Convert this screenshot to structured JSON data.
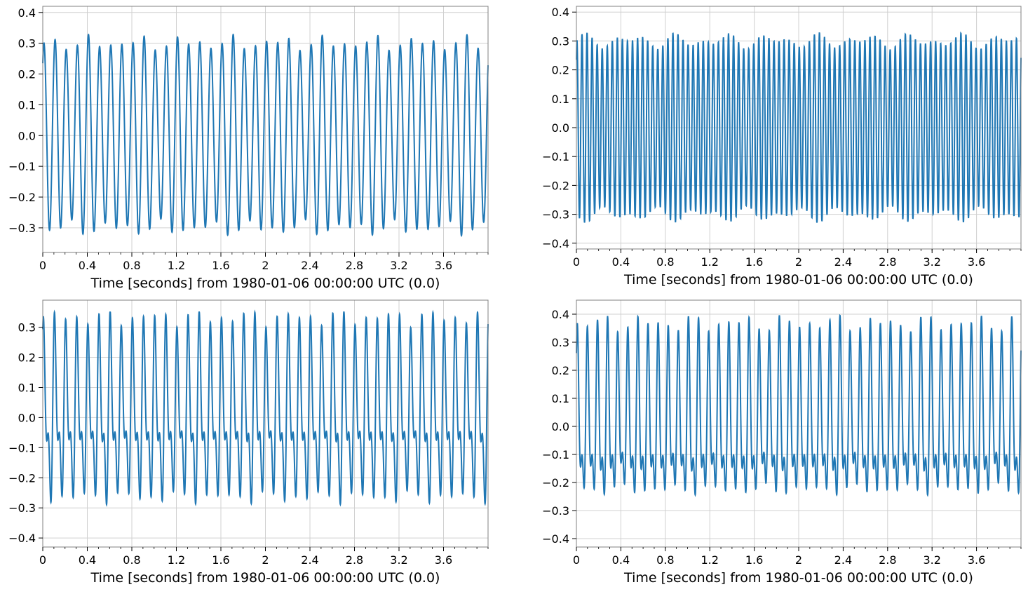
{
  "chart_data": [
    {
      "type": "line",
      "xlabel": "Time [seconds] from 1980-01-06 00:00:00 UTC (0.0)",
      "ylabel": "",
      "xlim": [
        0,
        4
      ],
      "ylim": [
        -0.38,
        0.42
      ],
      "xticks": [
        0,
        0.4,
        0.8,
        1.2,
        1.6,
        2,
        2.4,
        2.8,
        3.2,
        3.6
      ],
      "xtick_labels": [
        "0",
        "0.4",
        "0.8",
        "1.2",
        "1.6",
        "2",
        "2.4",
        "2.8",
        "3.2",
        "3.6"
      ],
      "yticks": [
        -0.3,
        -0.2,
        -0.1,
        0.0,
        0.1,
        0.2,
        0.3,
        0.4
      ],
      "ytick_labels": [
        "−0.3",
        "−0.2",
        "−0.1",
        "0.0",
        "0.1",
        "0.2",
        "0.3",
        "0.4"
      ],
      "grid": true,
      "color": "#1f77b4",
      "series": [
        {
          "f1": 10.0,
          "a1": 0.3,
          "f2": 0.0,
          "a2": 0.0,
          "p2": 0.0,
          "x": [
            0,
            4
          ],
          "amplitude_range": [
            -0.35,
            0.38
          ]
        }
      ]
    },
    {
      "type": "line",
      "xlabel": "Time [seconds] from 1980-01-06 00:00:00 UTC (0.0)",
      "ylabel": "",
      "xlim": [
        0,
        4
      ],
      "ylim": [
        -0.42,
        0.42
      ],
      "xticks": [
        0,
        0.4,
        0.8,
        1.2,
        1.6,
        2,
        2.4,
        2.8,
        3.2,
        3.6
      ],
      "xtick_labels": [
        "0",
        "0.4",
        "0.8",
        "1.2",
        "1.6",
        "2",
        "2.4",
        "2.8",
        "3.2",
        "3.6"
      ],
      "yticks": [
        -0.4,
        -0.3,
        -0.2,
        -0.1,
        0.0,
        0.1,
        0.2,
        0.3,
        0.4
      ],
      "ytick_labels": [
        "−0.4",
        "−0.3",
        "−0.2",
        "−0.1",
        "0.0",
        "0.1",
        "0.2",
        "0.3",
        "0.4"
      ],
      "grid": true,
      "color": "#1f77b4",
      "series": [
        {
          "f1": 22.0,
          "a1": 0.3,
          "f2": 0.0,
          "a2": 0.0,
          "p2": 0.0,
          "x": [
            0,
            4
          ],
          "amplitude_range": [
            -0.38,
            0.39
          ]
        }
      ]
    },
    {
      "type": "line",
      "xlabel": "Time [seconds] from 1980-01-06 00:00:00 UTC (0.0)",
      "ylabel": "",
      "xlim": [
        0,
        4
      ],
      "ylim": [
        -0.43,
        0.39
      ],
      "xticks": [
        0,
        0.4,
        0.8,
        1.2,
        1.6,
        2,
        2.4,
        2.8,
        3.2,
        3.6
      ],
      "xtick_labels": [
        "0",
        "0.4",
        "0.8",
        "1.2",
        "1.6",
        "2",
        "2.4",
        "2.8",
        "3.2",
        "3.6"
      ],
      "yticks": [
        -0.4,
        -0.3,
        -0.2,
        -0.1,
        0.0,
        0.1,
        0.2,
        0.3
      ],
      "ytick_labels": [
        "−0.4",
        "−0.3",
        "−0.2",
        "−0.1",
        "0.0",
        "0.1",
        "0.2",
        "0.3"
      ],
      "grid": true,
      "color": "#1f77b4",
      "series": [
        {
          "f1": 10.0,
          "a1": 0.22,
          "f2": 20.0,
          "a2": 0.13,
          "p2": 1.2,
          "x": [
            0,
            4
          ],
          "amplitude_range": [
            -0.39,
            0.35
          ]
        }
      ]
    },
    {
      "type": "line",
      "xlabel": "Time [seconds] from 1980-01-06 00:00:00 UTC (0.0)",
      "ylabel": "",
      "xlim": [
        0,
        4
      ],
      "ylim": [
        -0.43,
        0.45
      ],
      "xticks": [
        0,
        0.4,
        0.8,
        1.2,
        1.6,
        2,
        2.4,
        2.8,
        3.2,
        3.6
      ],
      "xtick_labels": [
        "0",
        "0.4",
        "0.8",
        "1.2",
        "1.6",
        "2",
        "2.4",
        "2.8",
        "3.2",
        "3.6"
      ],
      "yticks": [
        -0.4,
        -0.3,
        -0.2,
        -0.1,
        0.0,
        0.1,
        0.2,
        0.3,
        0.4
      ],
      "ytick_labels": [
        "−0.4",
        "−0.3",
        "−0.2",
        "−0.1",
        "0.0",
        "0.1",
        "0.2",
        "0.3",
        "0.4"
      ],
      "grid": true,
      "color": "#1f77b4",
      "series": [
        {
          "f1": 11.0,
          "a1": 0.24,
          "f2": 22.0,
          "a2": 0.13,
          "p2": 0.6,
          "x": [
            0,
            4
          ],
          "amplitude_range": [
            -0.39,
            0.41
          ]
        }
      ]
    }
  ]
}
